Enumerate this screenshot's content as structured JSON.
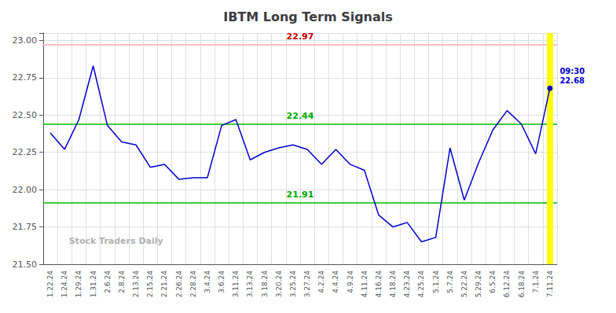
{
  "chart_data": {
    "type": "line",
    "title": "IBTM Long Term Signals",
    "categories": [
      "1.22.24",
      "1.24.24",
      "1.29.24",
      "1.31.24",
      "2.6.24",
      "2.8.24",
      "2.13.24",
      "2.15.24",
      "2.21.24",
      "2.26.24",
      "2.28.24",
      "3.4.24",
      "3.6.24",
      "3.11.24",
      "3.13.24",
      "3.18.24",
      "3.20.24",
      "3.25.24",
      "3.27.24",
      "4.2.24",
      "4.4.24",
      "4.9.24",
      "4.11.24",
      "4.16.24",
      "4.18.24",
      "4.23.24",
      "4.25.24",
      "5.1.24",
      "5.7.24",
      "5.22.24",
      "5.29.24",
      "6.5.24",
      "6.12.24",
      "6.18.24",
      "7.1.24",
      "7.11.24"
    ],
    "values": [
      22.38,
      22.27,
      22.47,
      22.83,
      22.43,
      22.32,
      22.3,
      22.15,
      22.17,
      22.07,
      22.08,
      22.08,
      22.43,
      22.47,
      22.2,
      22.25,
      22.28,
      22.3,
      22.27,
      22.17,
      22.27,
      22.17,
      22.13,
      21.83,
      21.75,
      21.78,
      21.65,
      21.68,
      22.28,
      21.93,
      22.18,
      22.4,
      22.53,
      22.44,
      22.24,
      22.68
    ],
    "color": "#0000cc",
    "ylim": [
      21.5,
      23.05
    ],
    "yticks": [
      {
        "value": 21.5,
        "label": "21.50"
      },
      21.75,
      {
        "value": 22.0,
        "label": "22.00"
      },
      22.25,
      {
        "value": 22.5,
        "label": "22.50"
      },
      22.75,
      {
        "value": 23.0,
        "label": "23.00"
      }
    ],
    "grid": true,
    "reference_lines": [
      {
        "y": 22.97,
        "color": "#ffaaaa",
        "label": "22.97",
        "label_color": "#cc0000"
      },
      {
        "y": 22.44,
        "color": "#00bb00",
        "label": "22.44",
        "label_color": "#00aa00"
      },
      {
        "y": 21.91,
        "color": "#00bb00",
        "label": "21.91",
        "label_color": "#00aa00"
      },
      {
        "x": "7.11.24",
        "color": "#ffff00"
      }
    ],
    "annotations": [
      {
        "text": "09:30\n22.68",
        "x": "7.11.24",
        "y": 22.68,
        "color": "#0000cc"
      },
      {
        "text": "Stock Traders Daily"
      }
    ]
  }
}
